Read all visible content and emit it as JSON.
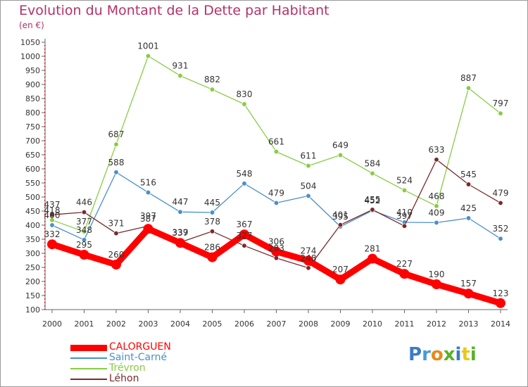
{
  "title": "Evolution du Montant de la Dette par Habitant",
  "unit": "(en €)",
  "logo": "Proxiti",
  "chart_data": {
    "type": "line",
    "title": "Evolution du Montant de la Dette par Habitant",
    "ylabel": "(en €)",
    "x": [
      "2000",
      "2001",
      "2002",
      "2003",
      "2004",
      "2005",
      "2006",
      "2007",
      "2008",
      "2009",
      "2010",
      "2011",
      "2012",
      "2013",
      "2014"
    ],
    "ylim": [
      100,
      1050
    ],
    "yticks": [
      100,
      150,
      200,
      250,
      300,
      350,
      400,
      450,
      500,
      550,
      600,
      650,
      700,
      750,
      800,
      850,
      900,
      950,
      1000,
      1050
    ],
    "grid": false,
    "legend_position": "bottom-left",
    "series": [
      {
        "name": "CALORGUEN",
        "color": "#ff0000",
        "values": [
          332,
          295,
          260,
          387,
          337,
          286,
          367,
          306,
          274,
          207,
          281,
          227,
          190,
          157,
          123
        ]
      },
      {
        "name": "Saint-Carné",
        "color": "#4a90c8",
        "values": [
          400,
          348,
          588,
          516,
          447,
          445,
          548,
          479,
          504,
          395,
          452,
          410,
          409,
          425,
          352
        ]
      },
      {
        "name": "Trévron",
        "color": "#88cc44",
        "values": [
          418,
          377,
          687,
          1001,
          931,
          882,
          830,
          661,
          611,
          649,
          584,
          524,
          468,
          887,
          797
        ]
      },
      {
        "name": "Léhon",
        "color": "#7a2a2a",
        "values": [
          437,
          446,
          371,
          397,
          339,
          378,
          327,
          283,
          248,
          401,
          455,
          397,
          633,
          545,
          479
        ]
      }
    ]
  }
}
